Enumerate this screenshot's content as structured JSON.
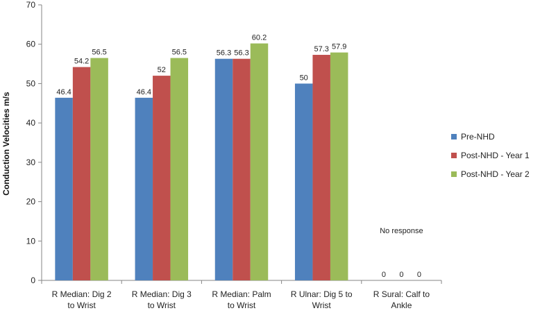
{
  "chart_data": {
    "type": "bar",
    "title": "",
    "xlabel": "",
    "ylabel": "Conduction Velocities m/s",
    "ylim": [
      0,
      70
    ],
    "yticks": [
      0,
      10,
      20,
      30,
      40,
      50,
      60,
      70
    ],
    "grid": false,
    "legend_position": "right",
    "categories": [
      [
        "R Median: Dig 2",
        "to Wrist"
      ],
      [
        "R Median: Dig 3",
        "to Wrist"
      ],
      [
        "R Median: Palm",
        "to Wrist"
      ],
      [
        "R Ulnar: Dig 5 to",
        "Wrist"
      ],
      [
        "R Sural: Calf to",
        "Ankle"
      ]
    ],
    "series": [
      {
        "name": "Pre-NHD",
        "color": "#4F81BD",
        "values": [
          46.4,
          46.4,
          56.3,
          50,
          0
        ]
      },
      {
        "name": "Post-NHD - Year 1",
        "color": "#C0504D",
        "values": [
          54.2,
          52,
          56.3,
          57.3,
          0
        ]
      },
      {
        "name": "Post-NHD - Year 2",
        "color": "#9BBB59",
        "values": [
          56.5,
          56.5,
          60.2,
          57.9,
          0
        ]
      }
    ],
    "annotations": [
      {
        "text": "No response",
        "category_index": 4
      }
    ]
  }
}
